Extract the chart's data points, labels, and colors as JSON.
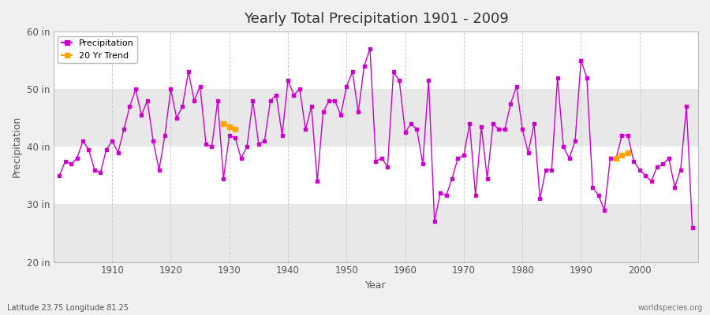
{
  "title": "Yearly Total Precipitation 1901 - 2009",
  "xlabel": "Year",
  "ylabel": "Precipitation",
  "xlim": [
    1900,
    2010
  ],
  "ylim": [
    20,
    60
  ],
  "yticks": [
    20,
    30,
    40,
    50,
    60
  ],
  "ytick_labels": [
    "20 in",
    "30 in",
    "40 in",
    "50 in",
    "60 in"
  ],
  "bg_color": "#f0f0f0",
  "plot_bg_color": "#ffffff",
  "band_color_light": "#ffffff",
  "band_color_dark": "#e8e8e8",
  "line_color": "#cc00cc",
  "trend_color": "#ffa500",
  "grid_color_v": "#cccccc",
  "subtitle_left": "Latitude 23.75 Longitude 81.25",
  "subtitle_right": "worldspecies.org",
  "xtick_vals": [
    1910,
    1920,
    1930,
    1940,
    1950,
    1960,
    1970,
    1980,
    1990,
    2000
  ],
  "years": [
    1901,
    1902,
    1903,
    1904,
    1905,
    1906,
    1907,
    1908,
    1909,
    1910,
    1911,
    1912,
    1913,
    1914,
    1915,
    1916,
    1917,
    1918,
    1919,
    1920,
    1921,
    1922,
    1923,
    1924,
    1925,
    1926,
    1927,
    1928,
    1929,
    1930,
    1931,
    1932,
    1933,
    1934,
    1935,
    1936,
    1937,
    1938,
    1939,
    1940,
    1941,
    1942,
    1943,
    1944,
    1945,
    1946,
    1947,
    1948,
    1949,
    1950,
    1951,
    1952,
    1953,
    1954,
    1955,
    1956,
    1957,
    1958,
    1959,
    1960,
    1961,
    1962,
    1963,
    1964,
    1965,
    1966,
    1967,
    1968,
    1969,
    1970,
    1971,
    1972,
    1973,
    1974,
    1975,
    1976,
    1977,
    1978,
    1979,
    1980,
    1981,
    1982,
    1983,
    1984,
    1985,
    1986,
    1987,
    1988,
    1989,
    1990,
    1991,
    1992,
    1993,
    1994,
    1995,
    1996,
    1997,
    1998,
    1999,
    2000,
    2001,
    2002,
    2003,
    2004,
    2005,
    2006,
    2007,
    2008,
    2009
  ],
  "precip": [
    35.0,
    37.5,
    37.0,
    38.0,
    41.0,
    39.5,
    36.0,
    35.5,
    39.5,
    41.0,
    39.0,
    43.0,
    47.0,
    50.0,
    45.5,
    48.0,
    41.0,
    36.0,
    42.0,
    50.0,
    45.0,
    47.0,
    53.0,
    48.0,
    50.5,
    40.5,
    40.0,
    48.0,
    34.5,
    42.0,
    41.5,
    38.0,
    40.0,
    48.0,
    40.5,
    41.0,
    48.0,
    49.0,
    42.0,
    51.5,
    49.0,
    50.0,
    43.0,
    47.0,
    34.0,
    46.0,
    48.0,
    48.0,
    45.5,
    50.5,
    53.0,
    46.0,
    54.0,
    57.0,
    37.5,
    38.0,
    36.5,
    53.0,
    51.5,
    42.5,
    44.0,
    43.0,
    37.0,
    51.5,
    27.0,
    32.0,
    31.5,
    34.5,
    38.0,
    38.5,
    44.0,
    31.5,
    43.5,
    34.5,
    44.0,
    43.0,
    43.0,
    47.5,
    50.5,
    43.0,
    39.0,
    44.0,
    31.0,
    36.0,
    36.0,
    52.0,
    40.0,
    38.0,
    41.0,
    55.0,
    52.0,
    33.0,
    31.5,
    29.0,
    38.0,
    38.0,
    42.0,
    42.0,
    37.5,
    36.0,
    35.0,
    34.0,
    36.5,
    37.0,
    38.0,
    33.0,
    36.0,
    47.0,
    26.0
  ],
  "isolated_years": [
    1907,
    1949,
    1955,
    1966,
    1973,
    1975
  ],
  "trend_segments": [
    {
      "years": [
        1929,
        1930,
        1931
      ],
      "values": [
        44.0,
        43.5,
        43.0
      ]
    },
    {
      "years": [
        1996,
        1997,
        1998
      ],
      "values": [
        38.0,
        38.5,
        39.0
      ]
    }
  ]
}
